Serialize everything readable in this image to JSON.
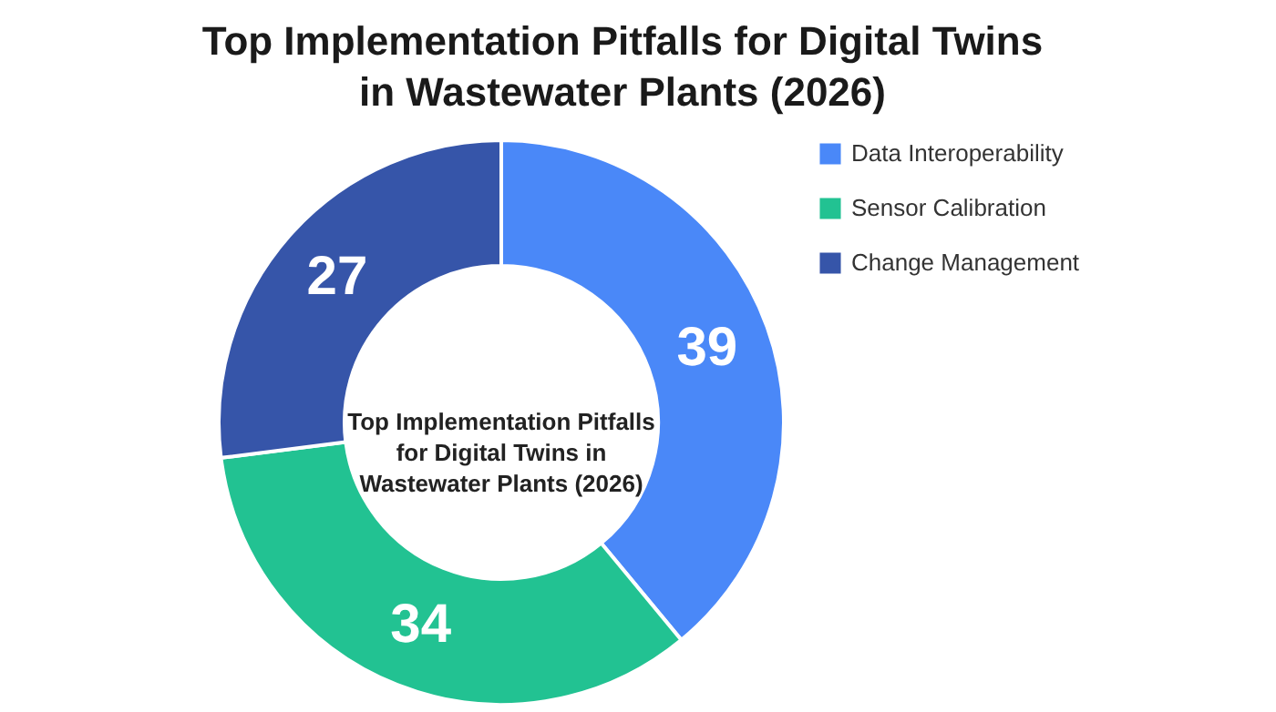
{
  "chart_data": {
    "type": "donut",
    "title": "Top Implementation Pitfalls for Digital Twins in Wastewater Plants (2026)",
    "categories": [
      "Data Interoperability",
      "Sensor Calibration",
      "Change Management"
    ],
    "values": [
      39,
      34,
      27
    ],
    "colors": [
      "#4a88f8",
      "#22c292",
      "#3655a9"
    ],
    "data_labels": true,
    "legend": "right",
    "annotations": [
      "Top Implementation Pitfalls for Digital Twins in Wastewater Plants (2026)"
    ]
  }
}
